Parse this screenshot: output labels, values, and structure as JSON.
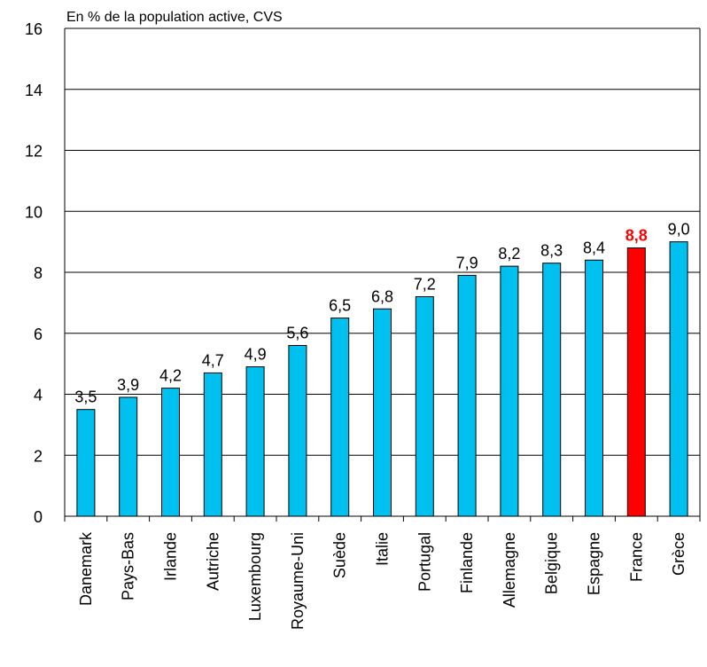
{
  "chart_data": {
    "type": "bar",
    "subtitle": "En % de la population active, CVS",
    "categories": [
      "Danemark",
      "Pays-Bas",
      "Irlande",
      "Autriche",
      "Luxembourg",
      "Royaume-Uni",
      "Suède",
      "Italie",
      "Portugal",
      "Finlande",
      "Allemagne",
      "Belgique",
      "Espagne",
      "France",
      "Grèce"
    ],
    "values": [
      3.5,
      3.9,
      4.2,
      4.7,
      4.9,
      5.6,
      6.5,
      6.8,
      7.2,
      7.9,
      8.2,
      8.3,
      8.4,
      8.8,
      9.0
    ],
    "value_labels": [
      "3,5",
      "3,9",
      "4,2",
      "4,7",
      "4,9",
      "5,6",
      "6,5",
      "6,8",
      "7,2",
      "7,9",
      "8,2",
      "8,3",
      "8,4",
      "8,8",
      "9,0"
    ],
    "colors": [
      "#00c0f0",
      "#00c0f0",
      "#00c0f0",
      "#00c0f0",
      "#00c0f0",
      "#00c0f0",
      "#00c0f0",
      "#00c0f0",
      "#00c0f0",
      "#00c0f0",
      "#00c0f0",
      "#00c0f0",
      "#00c0f0",
      "#ff0000",
      "#00c0f0"
    ],
    "value_label_colors": [
      "#000000",
      "#000000",
      "#000000",
      "#000000",
      "#000000",
      "#000000",
      "#000000",
      "#000000",
      "#000000",
      "#000000",
      "#000000",
      "#000000",
      "#000000",
      "#ff0000",
      "#000000"
    ],
    "ylim": [
      0,
      16
    ],
    "yticks": [
      0,
      2,
      4,
      6,
      8,
      10,
      12,
      14,
      16
    ],
    "grid": true
  }
}
